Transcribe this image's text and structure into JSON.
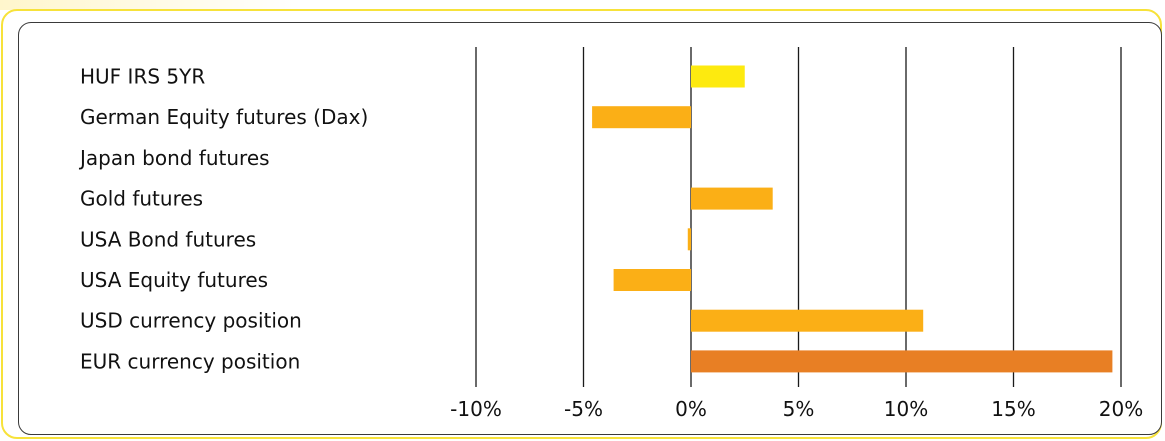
{
  "chart_data": {
    "type": "bar",
    "orientation": "horizontal",
    "title": "",
    "xlabel": "",
    "ylabel": "",
    "categories": [
      "HUF IRS 5YR",
      "German Equity futures (Dax)",
      "Japan bond futures",
      "Gold futures",
      "USA Bond futures",
      "USA Equity futures",
      "USD currency position",
      "EUR currency position"
    ],
    "values": [
      2.5,
      -4.6,
      0.0,
      3.8,
      -0.15,
      -3.6,
      10.8,
      19.6
    ],
    "colors": [
      "#fdea0f",
      "#fbaf16",
      "#fbaf16",
      "#fbaf16",
      "#fbaf16",
      "#fbaf16",
      "#fbaf16",
      "#e87f24"
    ],
    "x_ticks": [
      -10,
      -5,
      0,
      5,
      10,
      15,
      20
    ],
    "x_tick_labels": [
      "-10%",
      "-5%",
      "0%",
      "5%",
      "10%",
      "15%",
      "20%"
    ],
    "xlim": [
      -10,
      20
    ],
    "grid": "vertical",
    "legend": "none"
  }
}
